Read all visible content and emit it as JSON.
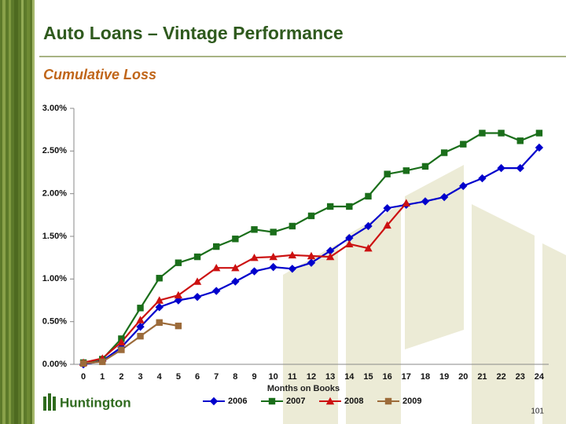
{
  "header": {
    "title": "Auto Loans – Vintage Performance",
    "subtitle": "Cumulative Loss"
  },
  "chart_data": {
    "type": "line",
    "x_label": "Months on Books",
    "categories": [
      "0",
      "1",
      "2",
      "3",
      "4",
      "5",
      "6",
      "7",
      "8",
      "9",
      "10",
      "11",
      "12",
      "13",
      "14",
      "15",
      "16",
      "17",
      "18",
      "19",
      "20",
      "21",
      "22",
      "23",
      "24"
    ],
    "ylim": [
      0,
      3
    ],
    "yticks": [
      {
        "value": 0,
        "label": "0.00%"
      },
      {
        "value": 0.5,
        "label": "0.50%"
      },
      {
        "value": 1,
        "label": "1.00%"
      },
      {
        "value": 1.5,
        "label": "1.50%"
      },
      {
        "value": 2,
        "label": "2.00%"
      },
      {
        "value": 2.5,
        "label": "2.50%"
      },
      {
        "value": 3,
        "label": "3.00%"
      }
    ],
    "grid": false,
    "legend": "bottom",
    "series": [
      {
        "name": "2006",
        "color": "#0000cc",
        "marker": "diamond",
        "values": [
          0.0,
          0.04,
          0.2,
          0.44,
          0.67,
          0.75,
          0.79,
          0.86,
          0.97,
          1.09,
          1.14,
          1.12,
          1.19,
          1.33,
          1.48,
          1.62,
          1.83,
          1.87,
          1.91,
          1.96,
          2.09,
          2.18,
          2.3,
          2.3,
          2.54
        ]
      },
      {
        "name": "2007",
        "color": "#1a6e1a",
        "marker": "square",
        "values": [
          0.02,
          0.06,
          0.3,
          0.66,
          1.01,
          1.19,
          1.26,
          1.38,
          1.47,
          1.58,
          1.55,
          1.62,
          1.74,
          1.85,
          1.85,
          1.97,
          2.23,
          2.27,
          2.32,
          2.48,
          2.58,
          2.71,
          2.71,
          2.62,
          2.71
        ]
      },
      {
        "name": "2008",
        "color": "#cc1111",
        "marker": "triangle",
        "values": [
          0.02,
          0.07,
          0.26,
          0.52,
          0.75,
          0.81,
          0.97,
          1.13,
          1.13,
          1.25,
          1.26,
          1.28,
          1.27,
          1.26,
          1.41,
          1.36,
          1.63,
          1.89,
          null,
          null,
          null,
          null,
          null,
          null,
          null
        ]
      },
      {
        "name": "2009",
        "color": "#9c6b3a",
        "marker": "square",
        "values": [
          0.01,
          0.03,
          0.17,
          0.33,
          0.49,
          0.45,
          null,
          null,
          null,
          null,
          null,
          null,
          null,
          null,
          null,
          null,
          null,
          null,
          null,
          null,
          null,
          null,
          null,
          null,
          null
        ]
      }
    ]
  },
  "logo": {
    "text": "Huntington"
  },
  "page_number": "101"
}
